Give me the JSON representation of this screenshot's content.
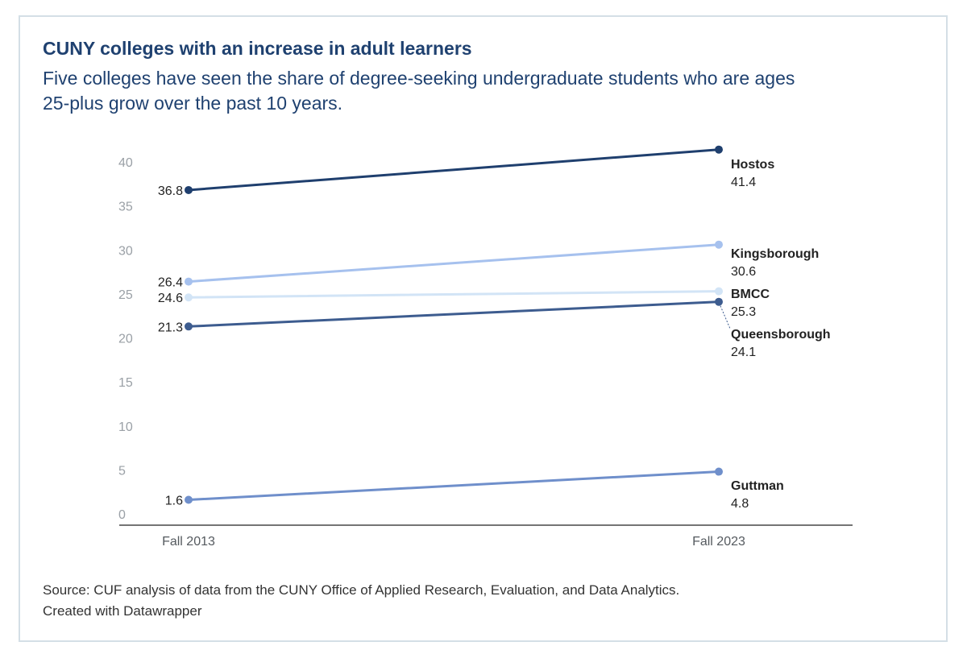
{
  "header": {
    "title": "CUNY colleges with an increase in adult learners",
    "subtitle": "Five colleges have seen the share of degree-seeking undergraduate students who are ages 25-plus grow over the past 10 years."
  },
  "chart_data": {
    "type": "line",
    "title": "CUNY colleges with an increase in adult learners",
    "xlabel": "",
    "ylabel": "",
    "ylim": [
      0,
      40
    ],
    "yticks": [
      "0",
      "5",
      "10",
      "15",
      "20",
      "25",
      "30",
      "35",
      "40"
    ],
    "x": [
      "Fall 2013",
      "Fall 2023"
    ],
    "series": [
      {
        "name": "Hostos",
        "values": [
          36.8,
          41.4
        ],
        "start_label": "36.8",
        "end_label": "41.4",
        "color": "#1f3f6e"
      },
      {
        "name": "Kingsborough",
        "values": [
          26.4,
          30.6
        ],
        "start_label": "26.4",
        "end_label": "30.6",
        "color": "#a6c1ee"
      },
      {
        "name": "BMCC",
        "values": [
          24.6,
          25.3
        ],
        "start_label": "24.6",
        "end_label": "25.3",
        "color": "#d2e4f6"
      },
      {
        "name": "Queensborough",
        "values": [
          21.3,
          24.1
        ],
        "start_label": "21.3",
        "end_label": "24.1",
        "color": "#3d5c8f"
      },
      {
        "name": "Guttman",
        "values": [
          1.6,
          4.8
        ],
        "start_label": "1.6",
        "end_label": "4.8",
        "color": "#6f8fcb"
      }
    ]
  },
  "footer": {
    "source": "Source: CUF analysis of data from the CUNY Office of Applied Research, Evaluation, and Data Analytics.",
    "credit": "Created with Datawrapper"
  }
}
